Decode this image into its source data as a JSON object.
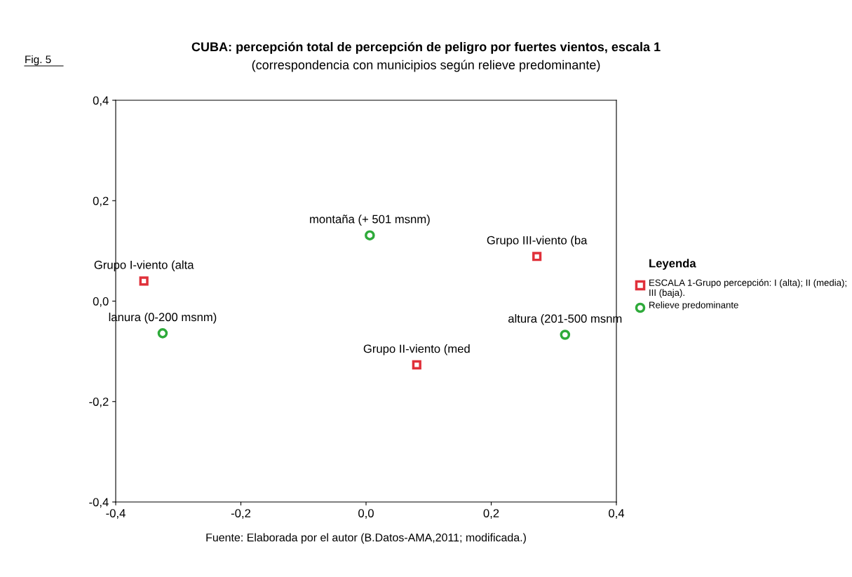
{
  "chart_data": {
    "type": "scatter",
    "title": "CUBA: percepción total de percepción de peligro por fuertes vientos, escala 1",
    "subtitle": "(correspondencia con municipios según relieve predominante)",
    "series": [
      {
        "name": "ESCALA 1-Grupo percepción: I (alta); II (media); III (baja).",
        "color": "#e0303a",
        "marker": "square",
        "x": [
          -0.355,
          0.081,
          0.273
        ],
        "values": [
          0.04,
          -0.127,
          0.089
        ]
      },
      {
        "name": "Relieve predominante",
        "color": "#2eaa3a",
        "marker": "circle",
        "x": [
          -0.325,
          0.006,
          0.318
        ],
        "values": [
          -0.064,
          0.131,
          -0.067
        ]
      }
    ],
    "annotations": [
      "Fig. 5",
      "Fuente: Elaborada por el autor (B.Datos-AMA,2011; modificada.)",
      {
        "text": "Grupo I-viento (alta",
        "x": -0.355,
        "y": 0.04
      },
      {
        "text": "Grupo II-viento (med",
        "x": 0.081,
        "y": -0.127
      },
      {
        "text": "Grupo III-viento (ba",
        "x": 0.273,
        "y": 0.089
      },
      {
        "text": "lanura (0-200 msnm)",
        "x": -0.325,
        "y": -0.064
      },
      {
        "text": "montaña (+ 501 msnm)",
        "x": 0.006,
        "y": 0.131
      },
      {
        "text": "altura (201-500 msnm",
        "x": 0.318,
        "y": -0.067
      }
    ],
    "legend_title": "Leyenda",
    "legend": "right",
    "xlim": [
      -0.4,
      0.4
    ],
    "ylim": [
      -0.4,
      0.4
    ],
    "xticks": [
      {
        "value": -0.4,
        "label": "-0,4"
      },
      {
        "value": -0.2,
        "label": "-0,2"
      },
      {
        "value": 0.0,
        "label": "0,0"
      },
      {
        "value": 0.2,
        "label": "0,2"
      },
      {
        "value": 0.4,
        "label": "0,4"
      }
    ],
    "yticks": [
      {
        "value": -0.4,
        "label": "-0,4"
      },
      {
        "value": -0.2,
        "label": "-0,2"
      },
      {
        "value": 0.0,
        "label": "0,0"
      },
      {
        "value": 0.2,
        "label": "0,2"
      },
      {
        "value": 0.4,
        "label": "0,4"
      }
    ],
    "grid": false
  }
}
